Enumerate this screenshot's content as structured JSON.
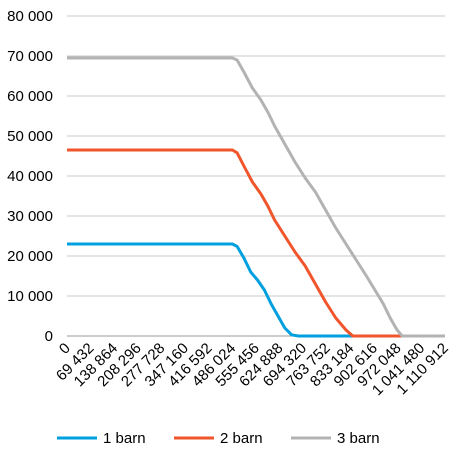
{
  "chart_data": {
    "type": "line",
    "x": [
      0,
      69432,
      138864,
      208296,
      277728,
      347160,
      416592,
      486024,
      555456,
      624888,
      694320,
      763752,
      833184,
      902616,
      972048,
      1041480,
      1110912
    ],
    "x_tick_labels": [
      "0",
      "69 432",
      "138 864",
      "208 296",
      "277 728",
      "347 160",
      "416 592",
      "486 024",
      "555 456",
      "624 888",
      "694 320",
      "763 752",
      "833 184",
      "902 616",
      "972 048",
      "1 041 480",
      "1 110 912"
    ],
    "y_tick_labels": [
      "0",
      "10 000",
      "20 000",
      "30 000",
      "40 000",
      "50 000",
      "60 000",
      "70 000",
      "80 000"
    ],
    "ylim": [
      0,
      80000
    ],
    "grid": true,
    "legend_position": "bottom",
    "series": [
      {
        "name": "1 barn",
        "color": "#00a0e0",
        "points": [
          [
            0,
            23000
          ],
          [
            486024,
            23000
          ],
          [
            500000,
            22400
          ],
          [
            520000,
            19500
          ],
          [
            540000,
            16000
          ],
          [
            560000,
            14000
          ],
          [
            580000,
            11500
          ],
          [
            600000,
            8000
          ],
          [
            620000,
            5000
          ],
          [
            640000,
            2000
          ],
          [
            660000,
            300
          ],
          [
            680000,
            0
          ],
          [
            1110912,
            0
          ]
        ]
      },
      {
        "name": "2 barn",
        "color": "#f0552b",
        "points": [
          [
            0,
            46500
          ],
          [
            486024,
            46500
          ],
          [
            500000,
            45800
          ],
          [
            520000,
            42500
          ],
          [
            545000,
            38500
          ],
          [
            570000,
            35500
          ],
          [
            590000,
            32500
          ],
          [
            610000,
            29000
          ],
          [
            640000,
            25000
          ],
          [
            670000,
            21000
          ],
          [
            700000,
            17500
          ],
          [
            730000,
            13000
          ],
          [
            760000,
            8500
          ],
          [
            790000,
            4500
          ],
          [
            820000,
            1500
          ],
          [
            840000,
            0
          ],
          [
            1110912,
            0
          ]
        ]
      },
      {
        "name": "3 barn",
        "color": "#b3b3b3",
        "points": [
          [
            0,
            69500
          ],
          [
            486024,
            69500
          ],
          [
            500000,
            69000
          ],
          [
            520000,
            66000
          ],
          [
            545000,
            62000
          ],
          [
            570000,
            59000
          ],
          [
            590000,
            56000
          ],
          [
            610000,
            52500
          ],
          [
            640000,
            48000
          ],
          [
            670000,
            43500
          ],
          [
            700000,
            39500
          ],
          [
            730000,
            36000
          ],
          [
            760000,
            31500
          ],
          [
            790000,
            27000
          ],
          [
            820000,
            23000
          ],
          [
            850000,
            19000
          ],
          [
            880000,
            15000
          ],
          [
            905000,
            11500
          ],
          [
            930000,
            8000
          ],
          [
            950000,
            4500
          ],
          [
            970000,
            1500
          ],
          [
            985000,
            0
          ],
          [
            1110912,
            0
          ]
        ]
      }
    ]
  }
}
